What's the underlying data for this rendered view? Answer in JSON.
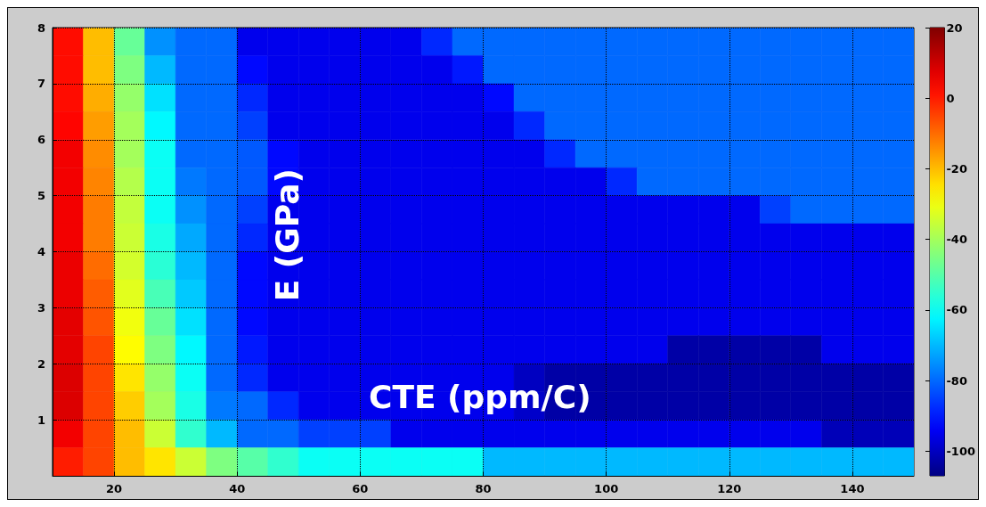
{
  "chart_data": {
    "type": "heatmap",
    "xlabel": "CTE (ppm/C)",
    "ylabel": "E (GPa)",
    "x": [
      12.5,
      17.5,
      22.5,
      27.5,
      32.5,
      37.5,
      42.5,
      47.5,
      52.5,
      57.5,
      62.5,
      67.5,
      72.5,
      77.5,
      82.5,
      87.5,
      92.5,
      97.5,
      102.5,
      107.5,
      112.5,
      117.5,
      122.5,
      127.5,
      132.5,
      137.5,
      142.5,
      147.5
    ],
    "y": [
      7.75,
      7.25,
      6.75,
      6.25,
      5.75,
      5.25,
      4.75,
      4.25,
      3.75,
      3.25,
      2.75,
      2.25,
      1.75,
      1.25,
      0.75,
      0.25
    ],
    "xlim": [
      10,
      150
    ],
    "xticks": [
      20,
      40,
      60,
      80,
      100,
      120,
      140
    ],
    "ylim": [
      0,
      8
    ],
    "yticks": [
      1,
      2,
      3,
      4,
      5,
      6,
      7,
      8
    ],
    "clim": [
      -107,
      20
    ],
    "cticks": [
      -100,
      -80,
      -60,
      -40,
      -20,
      0,
      20
    ],
    "grid": true,
    "cells": [
      [
        2,
        -20,
        -48,
        -75,
        -80,
        -80,
        -95,
        -95,
        -95,
        -95,
        -95,
        -95,
        -88,
        -80,
        -80,
        -80,
        -80,
        -80,
        -80,
        -80,
        -80,
        -80,
        -80,
        -80,
        -80,
        -80,
        -80,
        -80
      ],
      [
        2,
        -20,
        -45,
        -70,
        -80,
        -80,
        -92,
        -95,
        -95,
        -95,
        -95,
        -95,
        -95,
        -90,
        -80,
        -80,
        -80,
        -80,
        -80,
        -80,
        -80,
        -80,
        -80,
        -80,
        -80,
        -80,
        -80,
        -80
      ],
      [
        2,
        -18,
        -42,
        -65,
        -80,
        -80,
        -88,
        -95,
        -95,
        -95,
        -95,
        -95,
        -95,
        -95,
        -92,
        -80,
        -80,
        -80,
        -80,
        -80,
        -80,
        -80,
        -80,
        -80,
        -80,
        -80,
        -80,
        -80
      ],
      [
        3,
        -16,
        -40,
        -62,
        -80,
        -80,
        -85,
        -95,
        -95,
        -95,
        -95,
        -95,
        -95,
        -95,
        -95,
        -88,
        -80,
        -80,
        -80,
        -80,
        -80,
        -80,
        -80,
        -80,
        -80,
        -80,
        -80,
        -80
      ],
      [
        5,
        -14,
        -40,
        -60,
        -80,
        -80,
        -82,
        -92,
        -95,
        -95,
        -95,
        -95,
        -95,
        -95,
        -95,
        -95,
        -88,
        -80,
        -80,
        -80,
        -80,
        -80,
        -80,
        -80,
        -80,
        -80,
        -80,
        -80
      ],
      [
        5,
        -13,
        -38,
        -60,
        -78,
        -80,
        -82,
        -92,
        -95,
        -95,
        -95,
        -95,
        -95,
        -95,
        -95,
        -95,
        -95,
        -95,
        -88,
        -80,
        -80,
        -80,
        -80,
        -80,
        -80,
        -80,
        -80,
        -80
      ],
      [
        5,
        -12,
        -36,
        -60,
        -75,
        -80,
        -85,
        -95,
        -95,
        -95,
        -95,
        -95,
        -95,
        -95,
        -95,
        -95,
        -95,
        -95,
        -95,
        -95,
        -95,
        -95,
        -95,
        -85,
        -80,
        -80,
        -80,
        -80
      ],
      [
        5,
        -12,
        -35,
        -58,
        -72,
        -80,
        -88,
        -95,
        -95,
        -95,
        -95,
        -95,
        -95,
        -95,
        -95,
        -95,
        -95,
        -95,
        -95,
        -95,
        -95,
        -95,
        -95,
        -95,
        -95,
        -95,
        -95,
        -95
      ],
      [
        6,
        -10,
        -34,
        -56,
        -70,
        -80,
        -92,
        -95,
        -95,
        -95,
        -95,
        -95,
        -95,
        -95,
        -95,
        -95,
        -95,
        -95,
        -95,
        -95,
        -95,
        -95,
        -95,
        -95,
        -95,
        -95,
        -95,
        -95
      ],
      [
        6,
        -8,
        -32,
        -52,
        -68,
        -80,
        -92,
        -95,
        -95,
        -95,
        -95,
        -95,
        -95,
        -95,
        -95,
        -95,
        -95,
        -95,
        -95,
        -95,
        -95,
        -95,
        -95,
        -95,
        -95,
        -95,
        -95,
        -95
      ],
      [
        7,
        -7,
        -30,
        -48,
        -65,
        -80,
        -92,
        -95,
        -95,
        -95,
        -95,
        -95,
        -95,
        -95,
        -95,
        -95,
        -95,
        -95,
        -95,
        -95,
        -95,
        -95,
        -95,
        -95,
        -95,
        -95,
        -95,
        -95
      ],
      [
        7,
        -5,
        -28,
        -45,
        -62,
        -80,
        -90,
        -95,
        -95,
        -95,
        -95,
        -95,
        -95,
        -95,
        -95,
        -95,
        -95,
        -95,
        -95,
        -95,
        -103,
        -103,
        -103,
        -103,
        -103,
        -95,
        -95,
        -95
      ],
      [
        8,
        -5,
        -25,
        -42,
        -60,
        -80,
        -88,
        -95,
        -95,
        -95,
        -95,
        -95,
        -95,
        -95,
        -95,
        -100,
        -103,
        -103,
        -103,
        -103,
        -103,
        -103,
        -103,
        -103,
        -103,
        -103,
        -103,
        -103
      ],
      [
        8,
        -5,
        -22,
        -40,
        -58,
        -78,
        -80,
        -88,
        -95,
        -95,
        -95,
        -95,
        -95,
        -95,
        -95,
        -99,
        -103,
        -103,
        -103,
        -103,
        -103,
        -103,
        -103,
        -103,
        -103,
        -103,
        -103,
        -103
      ],
      [
        5,
        -5,
        -20,
        -35,
        -55,
        -70,
        -80,
        -80,
        -85,
        -85,
        -85,
        -95,
        -95,
        -95,
        -95,
        -95,
        -95,
        -95,
        -95,
        -95,
        -95,
        -95,
        -95,
        -95,
        -95,
        -101,
        -101,
        -101
      ],
      [
        0,
        -5,
        -20,
        -25,
        -35,
        -45,
        -50,
        -55,
        -60,
        -60,
        -60,
        -60,
        -60,
        -60,
        -70,
        -70,
        -70,
        -70,
        -70,
        -70,
        -70,
        -70,
        -70,
        -70,
        -70,
        -70,
        -70,
        -70
      ]
    ]
  }
}
